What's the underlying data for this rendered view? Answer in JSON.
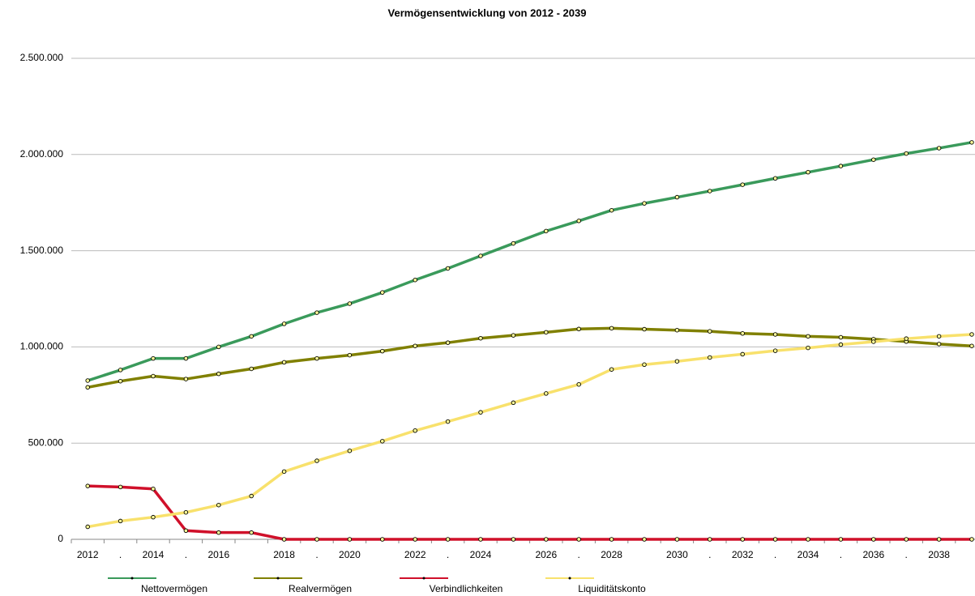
{
  "chart_data": {
    "type": "line",
    "title": "Vermögensentwicklung von 2012 - 2039",
    "categories": [
      "2012",
      ".",
      "2014",
      ".",
      "2016",
      null,
      "2018",
      ".",
      "2020",
      null,
      "2022",
      ".",
      "2024",
      null,
      "2026",
      ".",
      "2028",
      null,
      "2030",
      ".",
      "2032",
      ".",
      "2034",
      ".",
      "2036",
      ".",
      "2038",
      null
    ],
    "series": [
      {
        "name": "Nettovermögen",
        "color": "#3a9a5b",
        "values": [
          825000,
          880000,
          940000,
          940000,
          1000000,
          1055000,
          1120000,
          1178000,
          1225000,
          1283000,
          1348000,
          1408000,
          1473000,
          1538000,
          1602000,
          1655000,
          1710000,
          1746000,
          1778000,
          1810000,
          1843000,
          1876000,
          1908000,
          1940000,
          1973000,
          2005000,
          2033000,
          2063000
        ]
      },
      {
        "name": "Realvermögen",
        "color": "#808000",
        "values": [
          790000,
          822000,
          848000,
          833000,
          860000,
          886000,
          920000,
          940000,
          957000,
          978000,
          1005000,
          1022000,
          1045000,
          1060000,
          1076000,
          1093000,
          1097000,
          1092000,
          1087000,
          1081000,
          1070000,
          1065000,
          1055000,
          1050000,
          1040000,
          1028000,
          1015000,
          1005000
        ]
      },
      {
        "name": "Verbindlichkeiten",
        "color": "#d0102a",
        "values": [
          277000,
          272000,
          262000,
          45000,
          35000,
          35000,
          0,
          0,
          0,
          0,
          0,
          0,
          0,
          0,
          0,
          0,
          0,
          0,
          0,
          0,
          0,
          0,
          0,
          0,
          0,
          0,
          0,
          0
        ]
      },
      {
        "name": "Liquiditätskonto",
        "color": "#f8e16c",
        "values": [
          65000,
          95000,
          115000,
          140000,
          178000,
          225000,
          352000,
          408000,
          460000,
          510000,
          565000,
          612000,
          660000,
          710000,
          758000,
          805000,
          883000,
          908000,
          925000,
          945000,
          962000,
          980000,
          995000,
          1012000,
          1027000,
          1043000,
          1055000,
          1065000
        ]
      }
    ],
    "ylim": [
      0,
      2500000
    ],
    "yticks": [
      0,
      {
        "value": 500000,
        "label": "500.000"
      },
      {
        "value": 1000000,
        "label": "1.000.000"
      },
      {
        "value": 1500000,
        "label": "1.500.000"
      },
      {
        "value": 2000000,
        "label": "2.000.000"
      },
      {
        "value": 2500000,
        "label": "2.500.000"
      }
    ],
    "grid": true
  }
}
